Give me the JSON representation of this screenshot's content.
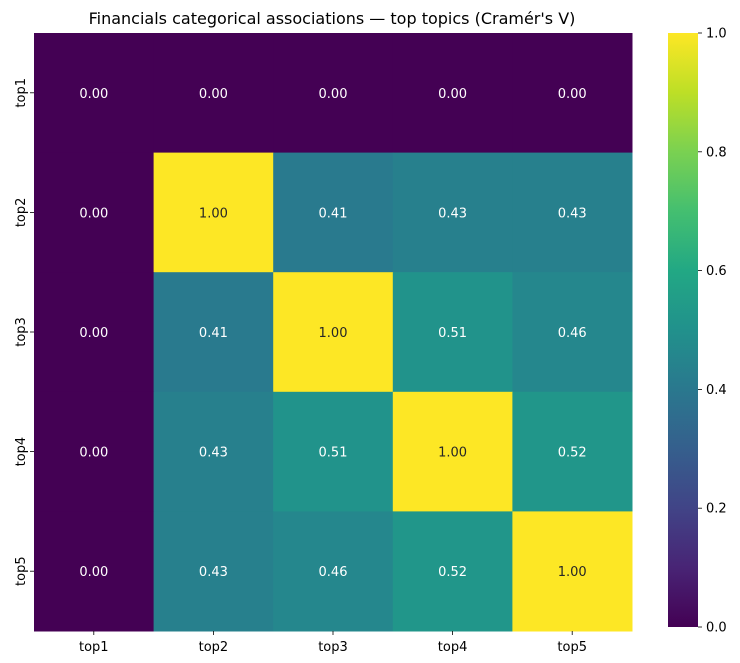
{
  "chart_data": {
    "type": "heatmap",
    "title": "Financials categorical associations — top topics (Cramér's V)",
    "x_labels": [
      "top1",
      "top2",
      "top3",
      "top4",
      "top5"
    ],
    "y_labels": [
      "top1",
      "top2",
      "top3",
      "top4",
      "top5"
    ],
    "values": [
      [
        0.0,
        0.0,
        0.0,
        0.0,
        0.0
      ],
      [
        0.0,
        1.0,
        0.41,
        0.43,
        0.43
      ],
      [
        0.0,
        0.41,
        1.0,
        0.51,
        0.46
      ],
      [
        0.0,
        0.43,
        0.51,
        1.0,
        0.52
      ],
      [
        0.0,
        0.43,
        0.46,
        0.52,
        1.0
      ]
    ],
    "value_format": "0.00",
    "colormap": "viridis",
    "vmin": 0.0,
    "vmax": 1.0,
    "colorbar_ticks": [
      "0.0",
      "0.2",
      "0.4",
      "0.6",
      "0.8",
      "1.0"
    ],
    "legend_placement": "right"
  }
}
